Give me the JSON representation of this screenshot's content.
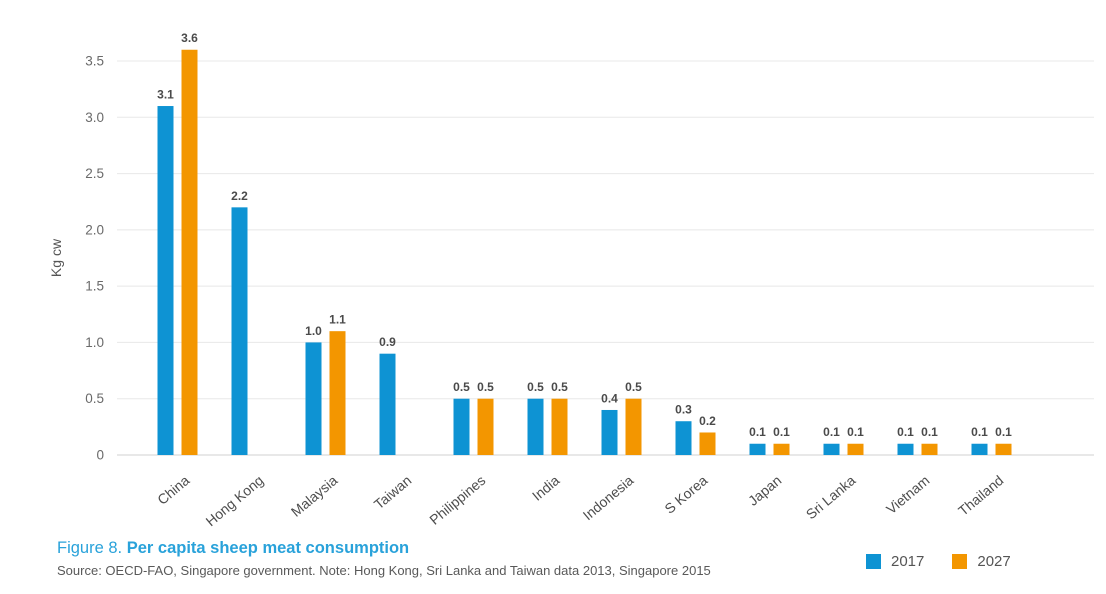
{
  "chart_data": {
    "type": "bar",
    "categories": [
      "China",
      "Hong Kong",
      "Malaysia",
      "Taiwan",
      "Philippines",
      "India",
      "Indonesia",
      "S Korea",
      "Japan",
      "Sri Lanka",
      "Vietnam",
      "Thailand"
    ],
    "series": [
      {
        "name": "2017",
        "color": "#0e93d3",
        "values": [
          3.1,
          2.2,
          1.0,
          0.9,
          0.5,
          0.5,
          0.4,
          0.3,
          0.1,
          0.1,
          0.1,
          0.1
        ]
      },
      {
        "name": "2027",
        "color": "#f39600",
        "values": [
          3.6,
          null,
          1.1,
          null,
          0.5,
          0.5,
          0.5,
          0.2,
          0.1,
          0.1,
          0.1,
          0.1
        ]
      }
    ],
    "ylabel": "Kg cw",
    "ylim": [
      0,
      3.5
    ],
    "yticks": [
      {
        "v": 0,
        "label": "0"
      },
      {
        "v": 0.5,
        "label": "0.5"
      },
      {
        "v": 1,
        "label": "1.0"
      },
      {
        "v": 1.5,
        "label": "1.5"
      },
      {
        "v": 2,
        "label": "2.0"
      },
      {
        "v": 2.5,
        "label": "2.5"
      },
      {
        "v": 3,
        "label": "3.0"
      },
      {
        "v": 3.5,
        "label": "3.5"
      }
    ],
    "grid": true,
    "value_labels": true,
    "value_label_decimals": 1,
    "legend_position": "bottom-right",
    "colors": {
      "gridline": "#e8e8e8",
      "baseline": "#d2d2d2",
      "axis_tick_text": "#6a6a6a",
      "axis_label_text": "#555555",
      "category_text": "#4d4d4d",
      "value_text": "#4a4a4a"
    }
  },
  "footer": {
    "figure_label": "Figure 8.",
    "title": "Per capita sheep meat consumption",
    "source": "Source: OECD-FAO, Singapore government. Note: Hong Kong, Sri Lanka and Taiwan data 2013, Singapore 2015",
    "title_color": "#29a2da"
  }
}
